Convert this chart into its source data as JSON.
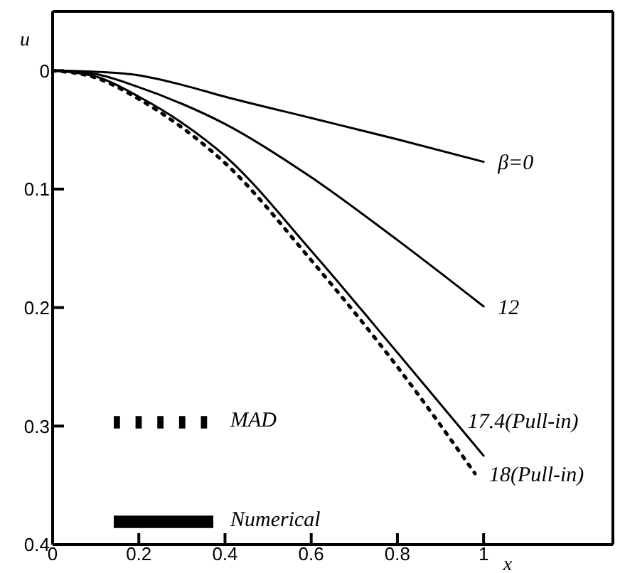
{
  "chart_data": {
    "type": "line",
    "xlabel": "x",
    "ylabel": "u",
    "xlim": [
      0,
      1.3
    ],
    "xticks": [
      0,
      0.2,
      0.4,
      0.6,
      0.8,
      1
    ],
    "ylim": [
      0.4,
      -0.05
    ],
    "yticks": [
      0,
      0.1,
      0.2,
      0.3,
      0.4
    ],
    "grid": false,
    "legend": "bottom left",
    "marker": "none",
    "series": [
      {
        "color": "#000000",
        "line_style": "solid",
        "x": [
          0,
          0.1,
          0.2,
          0.3,
          0.4,
          0.6,
          0.8,
          1
        ],
        "values": [
          0,
          0.001,
          0.004,
          0.012,
          0.022,
          0.04,
          0.058,
          0.077
        ]
      },
      {
        "color": "#000000",
        "line_style": "solid",
        "x": [
          0,
          0.1,
          0.2,
          0.3,
          0.4,
          0.6,
          0.8,
          1
        ],
        "values": [
          0,
          0.003,
          0.014,
          0.028,
          0.045,
          0.09,
          0.143,
          0.199
        ]
      },
      {
        "name": "Numerical",
        "color": "#000000",
        "line_style": "solid",
        "x": [
          0,
          0.1,
          0.2,
          0.3,
          0.4,
          0.6,
          0.8,
          1
        ],
        "values": [
          0,
          0.005,
          0.022,
          0.044,
          0.072,
          0.152,
          0.238,
          0.325
        ]
      },
      {
        "name": "MAD",
        "color": "#000000",
        "line_style": "dotted",
        "x": [
          0,
          0.1,
          0.2,
          0.3,
          0.4,
          0.6,
          0.8,
          0.98
        ],
        "values": [
          0,
          0.006,
          0.024,
          0.048,
          0.078,
          0.16,
          0.25,
          0.34
        ]
      }
    ],
    "annotations": [
      {
        "text": "β=0",
        "x": 1,
        "y": 0.077
      },
      {
        "text": "12",
        "x": 1,
        "y": 0.199
      },
      {
        "text": "17.4(Pull-in)",
        "x": 0.93,
        "y": 0.295
      },
      {
        "text": "18(Pull-in)",
        "x": 0.98,
        "y": 0.34
      }
    ]
  }
}
